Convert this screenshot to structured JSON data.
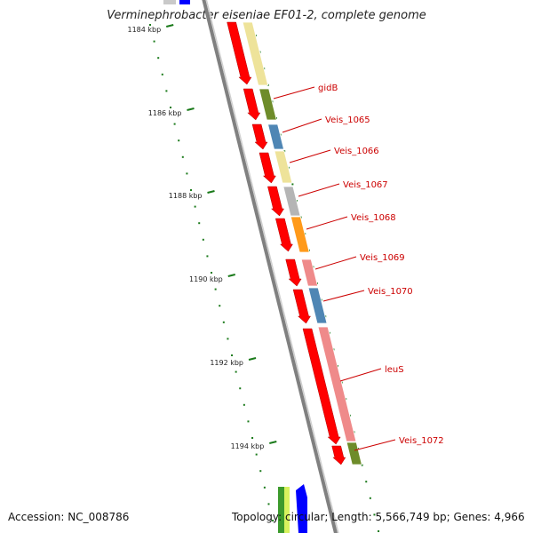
{
  "title": "Verminephrobacter eiseniae EF01-2, complete genome",
  "accession": "Accession: NC_008786",
  "summary": "Topology: circular; Length: 5,566,749 bp; Genes: 4,966",
  "ruler_labels": [
    "1184 kbp",
    "1186 kbp",
    "1188 kbp",
    "1190 kbp",
    "1192 kbp",
    "1194 kbp"
  ],
  "gene_labels": [
    "gidB",
    "Veis_1065",
    "Veis_1066",
    "Veis_1067",
    "Veis_1068",
    "Veis_1069",
    "Veis_1070",
    "leuS",
    "Veis_1072"
  ],
  "colors": {
    "cds": "#ff0000",
    "backbone": "#808080",
    "ruler": "#1a7a1a",
    "label": "#cc0000",
    "cog_yellow": "#eee39a",
    "cog_olive": "#6e8c2a",
    "cog_blue": "#4f86b4",
    "cog_grey": "#b5b5b5",
    "cog_orange": "#ff9a1a",
    "cog_pink": "#ef8a8a"
  }
}
